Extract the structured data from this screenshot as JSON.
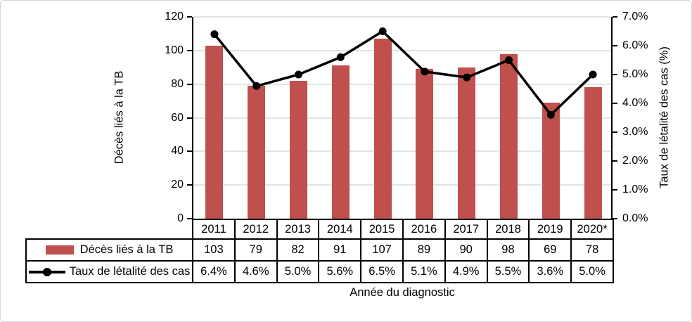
{
  "chart_data": {
    "type": "combo",
    "categories": [
      "2011",
      "2012",
      "2013",
      "2014",
      "2015",
      "2016",
      "2017",
      "2018",
      "2019",
      "2020*"
    ],
    "series": [
      {
        "name": "Décès liés à la TB",
        "type": "bar",
        "axis": "left",
        "color": "#C0504D",
        "values": [
          103,
          79,
          82,
          91,
          107,
          89,
          90,
          98,
          69,
          78
        ],
        "labels": [
          "103",
          "79",
          "82",
          "91",
          "107",
          "89",
          "90",
          "98",
          "69",
          "78"
        ]
      },
      {
        "name": "Taux de létalité des cas",
        "type": "line",
        "axis": "right",
        "color": "#000000",
        "values": [
          6.4,
          4.6,
          5.0,
          5.6,
          6.5,
          5.1,
          4.9,
          5.5,
          3.6,
          5.0
        ],
        "labels": [
          "6.4%",
          "4.6%",
          "5.0%",
          "5.6%",
          "6.5%",
          "5.1%",
          "4.9%",
          "5.5%",
          "3.6%",
          "5.0%"
        ]
      }
    ],
    "left_axis": {
      "label": "Décès liés à la TB",
      "min": 0,
      "max": 120,
      "step": 20,
      "ticks": [
        "0",
        "20",
        "40",
        "60",
        "80",
        "100",
        "120"
      ]
    },
    "right_axis": {
      "label": "Taux de létalité des cas (%)",
      "min": 0,
      "max": 7,
      "step": 1,
      "ticks": [
        "0.0%",
        "1.0%",
        "2.0%",
        "3.0%",
        "4.0%",
        "5.0%",
        "6.0%",
        "7.0%"
      ]
    },
    "xlabel": "Année du diagnostic",
    "grid": "horizontal",
    "legend_position": "table-left"
  },
  "colors": {
    "bar": "#C0504D",
    "line": "#000000",
    "gridline": "#e3e3e3",
    "axis": "#000000",
    "figure_border": "#d5d5d5"
  }
}
